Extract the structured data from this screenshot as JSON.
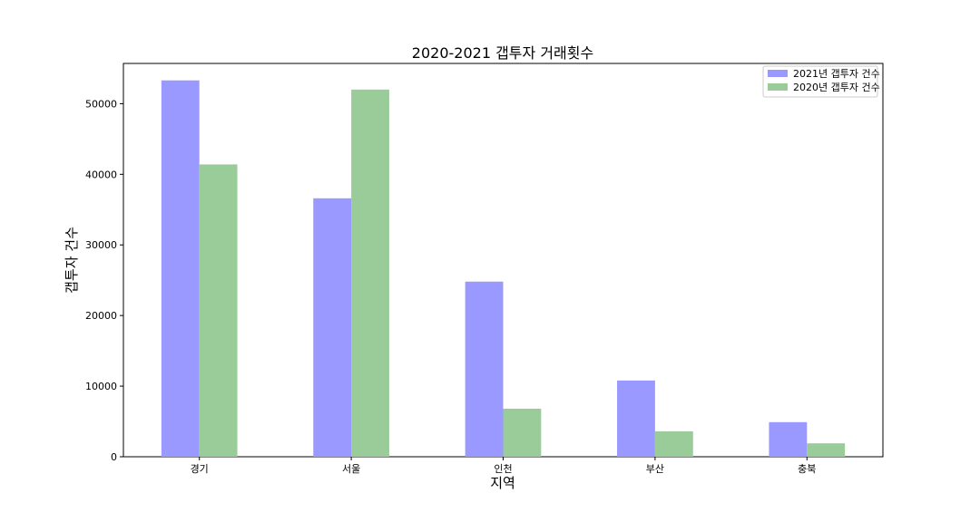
{
  "chart_data": {
    "type": "bar",
    "title": "2020-2021 갭투자 거래횟수",
    "xlabel": "지역",
    "ylabel": "갭투자 건수",
    "categories": [
      "경기",
      "서울",
      "인천",
      "부산",
      "충북"
    ],
    "series": [
      {
        "name": "2021년 갭투자 건수",
        "values": [
          53300,
          36600,
          24800,
          10800,
          4900
        ],
        "color": "#9999ff"
      },
      {
        "name": "2020년 갭투자 건수",
        "values": [
          41400,
          52000,
          6800,
          3600,
          1900
        ],
        "color": "#99cc99"
      }
    ],
    "ylim": [
      0,
      55700
    ],
    "yticks": [
      0,
      10000,
      20000,
      30000,
      40000,
      50000
    ],
    "ytick_labels": [
      "0",
      "10000",
      "20000",
      "30000",
      "40000",
      "50000"
    ],
    "grid": false,
    "legend_position": "top-right"
  }
}
